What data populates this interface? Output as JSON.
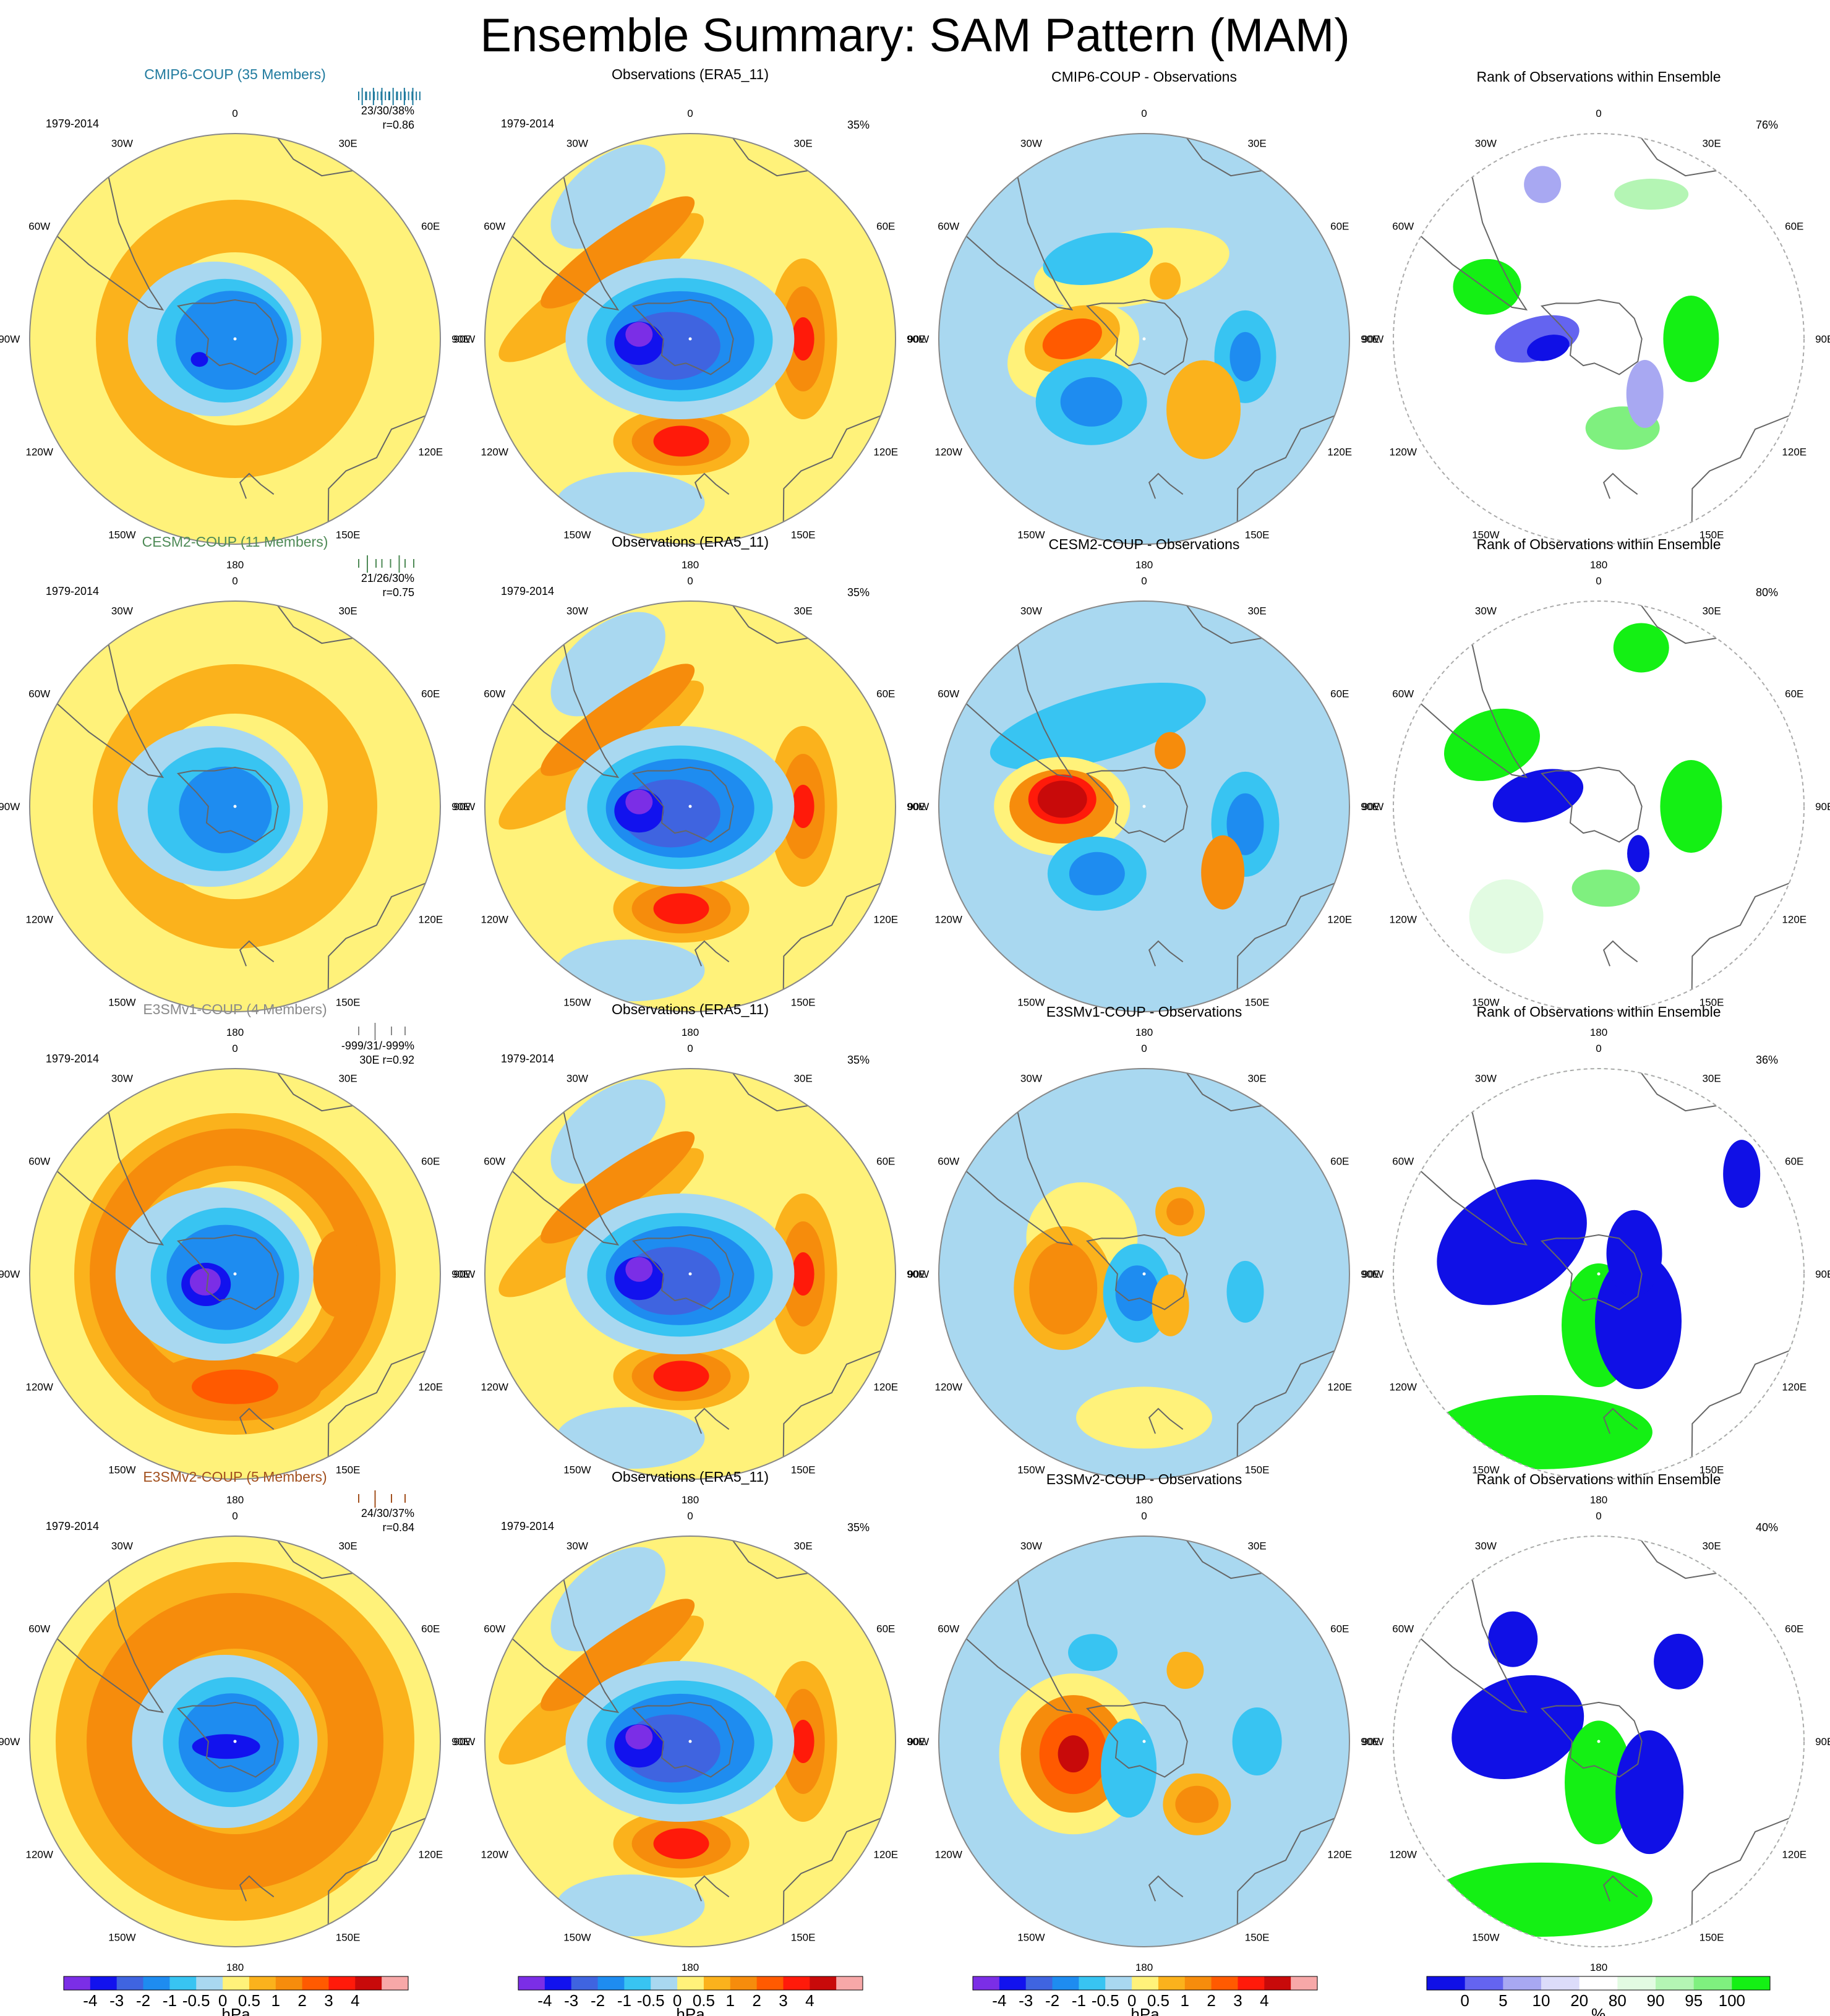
{
  "title": "Ensemble Summary: SAM Pattern (MAM)",
  "palette": {
    "slp": [
      "#7b2ee6",
      "#1212ee",
      "#3f64e0",
      "#1e8cf0",
      "#38c4f2",
      "#a9d8f0",
      "#fff27a",
      "#fbb21c",
      "#f68c0c",
      "#ff5a00",
      "#ff1a0a",
      "#c80a0a",
      "#f7a8a8"
    ],
    "rank": [
      "#1010e6",
      "#6464f0",
      "#a8a8f2",
      "#dcdcfa",
      "#ffffff",
      "#e2fbe2",
      "#b4f5b4",
      "#7ff07f",
      "#14f014"
    ],
    "coast": "#666666",
    "rim": "#888888"
  },
  "colorbars": [
    {
      "ticks": [
        "-4",
        "-3",
        "-2",
        "-1",
        "-0.5",
        "0",
        "0.5",
        "1",
        "2",
        "3",
        "4"
      ],
      "unit": "hPa"
    },
    {
      "ticks": [
        "-4",
        "-3",
        "-2",
        "-1",
        "-0.5",
        "0",
        "0.5",
        "1",
        "2",
        "3",
        "4"
      ],
      "unit": "hPa"
    },
    {
      "ticks": [
        "-4",
        "-3",
        "-2",
        "-1",
        "-0.5",
        "0",
        "0.5",
        "1",
        "2",
        "3",
        "4"
      ],
      "unit": "hPa"
    },
    {
      "ticks": [
        "0",
        "5",
        "10",
        "20",
        "80",
        "90",
        "95",
        "100"
      ],
      "unit": "%"
    }
  ],
  "lon_labels": [
    "0",
    "30E",
    "60E",
    "90E",
    "120E",
    "150E",
    "180",
    "150W",
    "120W",
    "90W",
    "60W",
    "30W"
  ],
  "rows": [
    {
      "ensemble": {
        "title": "CMIP6-COUP (35 Members)",
        "title_color": "#1f7a9e",
        "period": "1979-2014",
        "stat1": "23/30/38%",
        "stat2": "r=0.86",
        "glyph": "many"
      },
      "obs": {
        "title": "Observations (ERA5_11)",
        "period": "1979-2014",
        "pct": "35%"
      },
      "diff": {
        "title": "CMIP6-COUP - Observations"
      },
      "rank": {
        "title": "Rank of Observations within Ensemble",
        "pct": "76%"
      }
    },
    {
      "ensemble": {
        "title": "CESM2-COUP (11 Members)",
        "title_color": "#4e8a56",
        "period": "1979-2014",
        "stat1": "21/26/30%",
        "stat2": "r=0.75",
        "glyph": "few"
      },
      "obs": {
        "title": "Observations (ERA5_11)",
        "period": "1979-2014",
        "pct": "35%"
      },
      "diff": {
        "title": "CESM2-COUP - Observations"
      },
      "rank": {
        "title": "Rank of Observations within Ensemble",
        "pct": "80%"
      }
    },
    {
      "ensemble": {
        "title": "E3SMv1-COUP (4 Members)",
        "title_color": "#8a8a8a",
        "period": "1979-2014",
        "stat1": "-999/31/-999%",
        "stat2": "30E r=0.92",
        "glyph": "two"
      },
      "obs": {
        "title": "Observations (ERA5_11)",
        "period": "1979-2014",
        "pct": "35%"
      },
      "diff": {
        "title": "E3SMv1-COUP - Observations"
      },
      "rank": {
        "title": "Rank of Observations within Ensemble",
        "pct": "36%"
      }
    },
    {
      "ensemble": {
        "title": "E3SMv2-COUP (5 Members)",
        "title_color": "#a2501e",
        "period": "1979-2014",
        "stat1": "24/30/37%",
        "stat2": "r=0.84",
        "glyph": "two"
      },
      "obs": {
        "title": "Observations (ERA5_11)",
        "period": "1979-2014",
        "pct": "35%"
      },
      "diff": {
        "title": "E3SMv2-COUP - Observations"
      },
      "rank": {
        "title": "Rank of Observations within Ensemble",
        "pct": "40%"
      }
    }
  ],
  "chart_data": {
    "type": "heatmap",
    "projection": "south polar stereographic",
    "field": "SAM pattern sea level pressure anomaly",
    "season": "MAM",
    "slp_levels_hPa": [
      -4,
      -3,
      -2,
      -1,
      -0.5,
      0,
      0.5,
      1,
      2,
      3,
      4
    ],
    "rank_levels_pct": [
      0,
      5,
      10,
      20,
      80,
      90,
      95,
      100
    ],
    "panels": [
      {
        "row": 1,
        "column": "ensemble",
        "title": "CMIP6-COUP (35 Members)",
        "members": 35,
        "stats": "23/30/38%",
        "r": 0.86,
        "features": [
          {
            "value_hPa": -3,
            "location": "polar low centred over Antarctica"
          },
          {
            "value_hPa": 1,
            "location": "mid-latitude ring of positive anomalies"
          }
        ]
      },
      {
        "row": 1,
        "column": "obs",
        "title": "Observations (ERA5_11)",
        "explained_variance_pct": 35,
        "features": [
          {
            "value_hPa": -4,
            "location": "polar low, min near 100W"
          },
          {
            "value_hPa": 3,
            "location": "Pacific high near 160W"
          },
          {
            "value_hPa": 3,
            "location": "Indian Ocean high near 90E"
          },
          {
            "value_hPa": 1,
            "location": "Atlantic high band near 30W"
          }
        ]
      },
      {
        "row": 1,
        "column": "diff",
        "title": "CMIP6-COUP - Observations",
        "features": [
          {
            "value_hPa": 2,
            "location": "Bellingshausen Sea near 90W"
          },
          {
            "value_hPa": -2,
            "location": "Ross Sea near 150W"
          },
          {
            "value_hPa": -1,
            "location": "Indian Ocean near 90E"
          }
        ]
      },
      {
        "row": 1,
        "column": "rank",
        "title": "Rank of Observations within Ensemble",
        "pct": 76
      },
      {
        "row": 2,
        "column": "ensemble",
        "title": "CESM2-COUP (11 Members)",
        "members": 11,
        "stats": "21/26/30%",
        "r": 0.75
      },
      {
        "row": 2,
        "column": "obs",
        "title": "Observations (ERA5_11)",
        "explained_variance_pct": 35
      },
      {
        "row": 2,
        "column": "diff",
        "title": "CESM2-COUP - Observations",
        "features": [
          {
            "value_hPa": 3,
            "location": "near 90W"
          },
          {
            "value_hPa": -2,
            "location": "near 150W"
          }
        ]
      },
      {
        "row": 2,
        "column": "rank",
        "title": "Rank of Observations within Ensemble",
        "pct": 80
      },
      {
        "row": 3,
        "column": "ensemble",
        "title": "E3SMv1-COUP (4 Members)",
        "members": 4,
        "stats": "-999/31/-999%",
        "r": 0.92
      },
      {
        "row": 3,
        "column": "obs",
        "title": "Observations (ERA5_11)",
        "explained_variance_pct": 35
      },
      {
        "row": 3,
        "column": "diff",
        "title": "E3SMv1-COUP - Observations"
      },
      {
        "row": 3,
        "column": "rank",
        "title": "Rank of Observations within Ensemble",
        "pct": 36
      },
      {
        "row": 4,
        "column": "ensemble",
        "title": "E3SMv2-COUP (5 Members)",
        "members": 5,
        "stats": "24/30/37%",
        "r": 0.84
      },
      {
        "row": 4,
        "column": "obs",
        "title": "Observations (ERA5_11)",
        "explained_variance_pct": 35
      },
      {
        "row": 4,
        "column": "diff",
        "title": "E3SMv2-COUP - Observations",
        "features": [
          {
            "value_hPa": 3,
            "location": "near 90W"
          }
        ]
      },
      {
        "row": 4,
        "column": "rank",
        "title": "Rank of Observations within Ensemble",
        "pct": 40
      }
    ]
  }
}
